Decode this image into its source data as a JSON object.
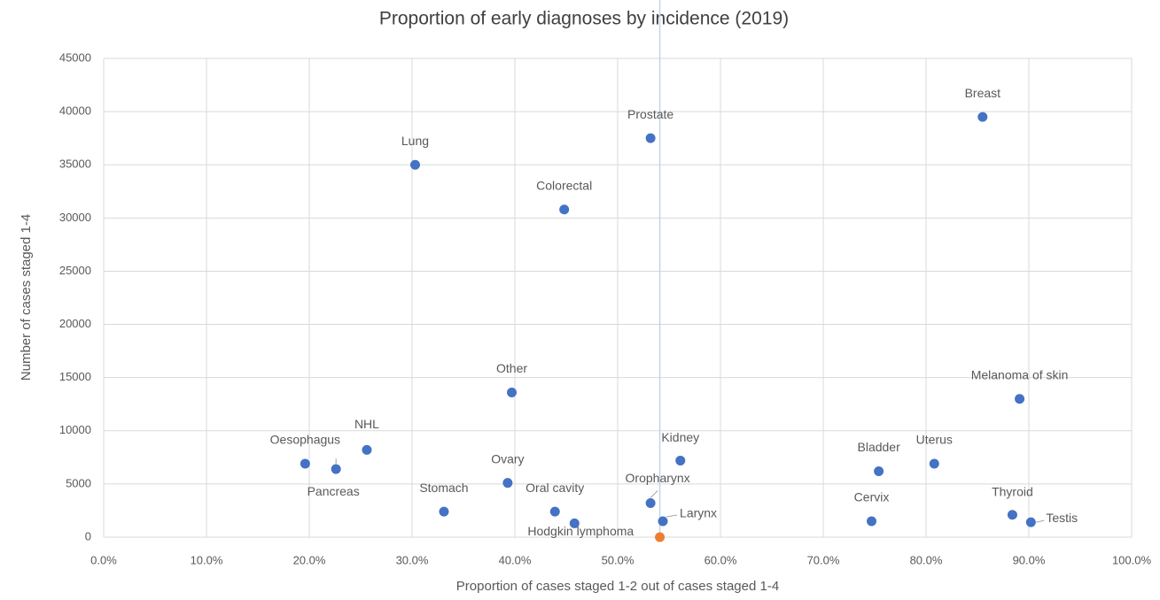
{
  "chart_data": {
    "type": "scatter",
    "title": "Proportion of early diagnoses by incidence (2019)",
    "x_label": "Proportion of cases staged 1-2 out of cases staged 1-4",
    "y_label": "Number of cases staged 1-4",
    "xlim": [
      0,
      100
    ],
    "xticks": [
      {
        "value": 0,
        "label": "0.0%"
      },
      {
        "value": 10,
        "label": "10.0%"
      },
      {
        "value": 20,
        "label": "20.0%"
      },
      {
        "value": 30,
        "label": "30.0%"
      },
      {
        "value": 40,
        "label": "40.0%"
      },
      {
        "value": 50,
        "label": "50.0%"
      },
      {
        "value": 60,
        "label": "60.0%"
      },
      {
        "value": 70,
        "label": "70.0%"
      },
      {
        "value": 80,
        "label": "80.0%"
      },
      {
        "value": 90,
        "label": "90.0%"
      },
      {
        "value": 100,
        "label": "100.0%"
      }
    ],
    "ylim": [
      0,
      45000
    ],
    "yticks": [
      0,
      5000,
      10000,
      15000,
      20000,
      25000,
      30000,
      35000,
      40000,
      45000
    ],
    "grid": true,
    "reference_x": 54.1,
    "reference_color": "#bdd7ee",
    "series": [
      {
        "color": "#4472c4",
        "labels": [
          "Breast",
          "Prostate",
          "Lung",
          "Colorectal",
          "Other",
          "Melanoma of skin",
          "NHL",
          "Oesophagus",
          "Pancreas",
          "Kidney",
          "Ovary",
          "Bladder",
          "Uterus",
          "Stomach",
          "Oral cavity",
          "Hodgkin lymphoma",
          "Oropharynx",
          "Larynx",
          "Cervix",
          "Thyroid",
          "Testis"
        ],
        "x": [
          85.5,
          53.2,
          30.3,
          44.8,
          39.7,
          89.1,
          25.6,
          19.6,
          22.6,
          56.1,
          39.3,
          75.4,
          80.8,
          33.1,
          43.9,
          45.8,
          53.2,
          54.4,
          74.7,
          88.4,
          90.2
        ],
        "values": [
          39500,
          37500,
          35000,
          30800,
          13600,
          13000,
          8200,
          6900,
          6400,
          7200,
          5100,
          6200,
          6900,
          2400,
          2400,
          1300,
          3200,
          1500,
          1500,
          2100,
          1400
        ]
      },
      {
        "color": "#ed7d31",
        "x": [
          54.1
        ],
        "values": [
          0
        ]
      }
    ]
  }
}
